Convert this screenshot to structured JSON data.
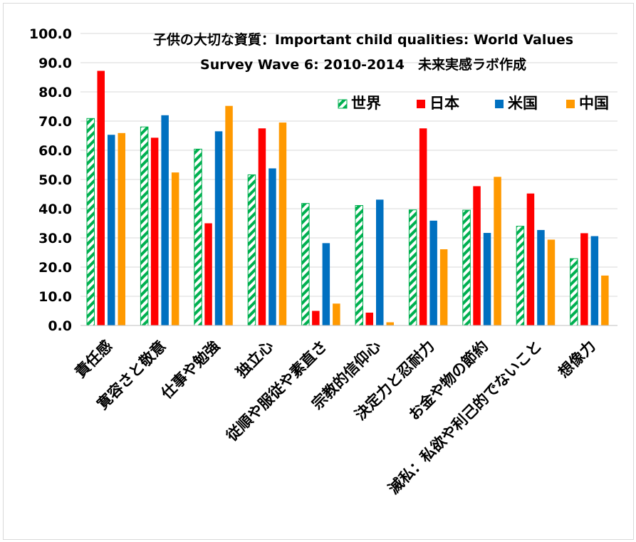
{
  "chart_data": {
    "type": "bar",
    "title_line1": "子供の大切な資質：Important child qualities: World Values",
    "title_line2": "Survey Wave 6: 2010-2014　未来実感ラボ作成",
    "categories": [
      "責任感",
      "寛容さと敬意",
      "仕事や勉強",
      "独立心",
      "従順や服従や素直さ",
      "宗教的信仰心",
      "決定力と忍耐力",
      "お金や物の節約",
      "滅私：私欲や利己的でないこと",
      "想像力"
    ],
    "series": [
      {
        "name": "世界",
        "values": [
          70.9,
          68.0,
          60.4,
          51.6,
          41.8,
          41.1,
          39.6,
          39.5,
          34.0,
          22.9
        ]
      },
      {
        "name": "日本",
        "values": [
          87.2,
          64.3,
          35.0,
          67.5,
          5.0,
          4.4,
          67.5,
          47.7,
          45.2,
          31.6
        ]
      },
      {
        "name": "米国",
        "values": [
          65.3,
          72.0,
          66.5,
          53.8,
          28.2,
          43.1,
          35.9,
          31.7,
          32.7,
          30.6
        ]
      },
      {
        "name": "中国",
        "values": [
          65.9,
          52.4,
          75.2,
          69.5,
          7.5,
          1.1,
          26.1,
          50.9,
          29.4,
          17.1
        ]
      }
    ],
    "colors": {
      "世界": "#00b050",
      "日本": "#ff0000",
      "米国": "#0070c0",
      "中国": "#ff9900"
    },
    "patterns": {
      "世界": "green-diagonal-hatch"
    },
    "ylim": [
      0,
      100
    ],
    "ytick_labels": [
      "0.0",
      "10.0",
      "20.0",
      "30.0",
      "40.0",
      "50.0",
      "60.0",
      "70.0",
      "80.0",
      "90.0",
      "100.0"
    ],
    "grid": true,
    "legend_position": "top-right"
  }
}
